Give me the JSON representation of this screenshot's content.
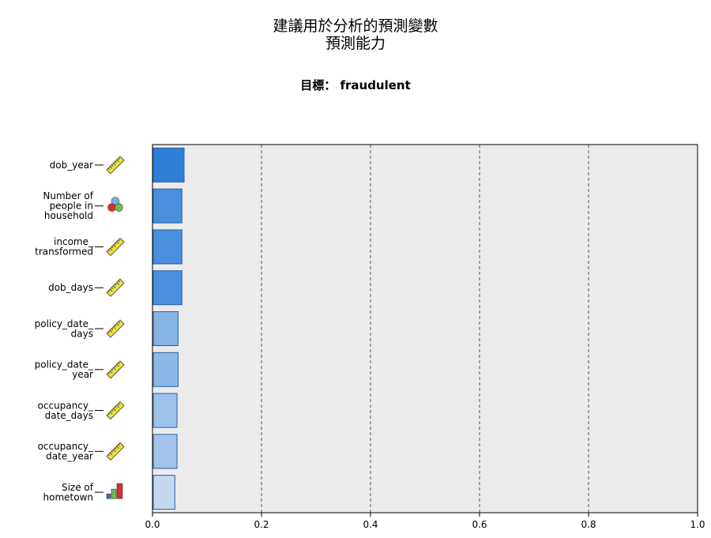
{
  "title_lines": [
    "建議用於分析的預測變數",
    "預測能力"
  ],
  "target": {
    "label": "目標：",
    "value": "fraudulent"
  },
  "chart_data": {
    "type": "bar",
    "orientation": "horizontal",
    "categories": [
      [
        "dob_year"
      ],
      [
        "Number of",
        "people in",
        "household"
      ],
      [
        "income_",
        "transformed"
      ],
      [
        "dob_days"
      ],
      [
        "policy_date_",
        "days"
      ],
      [
        "policy_date_",
        "year"
      ],
      [
        "occupancy_",
        "date_days"
      ],
      [
        "occupancy_",
        "date_year"
      ],
      [
        "Size of",
        "hometown"
      ]
    ],
    "category_icons": [
      "ruler-icon",
      "nominal-circles-icon",
      "ruler-icon",
      "ruler-icon",
      "ruler-icon",
      "ruler-icon",
      "ruler-icon",
      "ruler-icon",
      "ordinal-bars-icon"
    ],
    "values": [
      0.058,
      0.054,
      0.054,
      0.054,
      0.047,
      0.047,
      0.045,
      0.045,
      0.041
    ],
    "bar_colors": [
      "#2f7ed8",
      "#4a8fdc",
      "#4a8fdc",
      "#4a8fdc",
      "#86b3e6",
      "#8db7e6",
      "#9fc2ea",
      "#a2c4ea",
      "#c3d8ee"
    ],
    "xlim": [
      0,
      1.0
    ],
    "xticks": [
      "0.0",
      "0.2",
      "0.4",
      "0.6",
      "0.8",
      "1.0"
    ],
    "grid": "vertical dashed",
    "plot_background": "#ebebeb"
  }
}
